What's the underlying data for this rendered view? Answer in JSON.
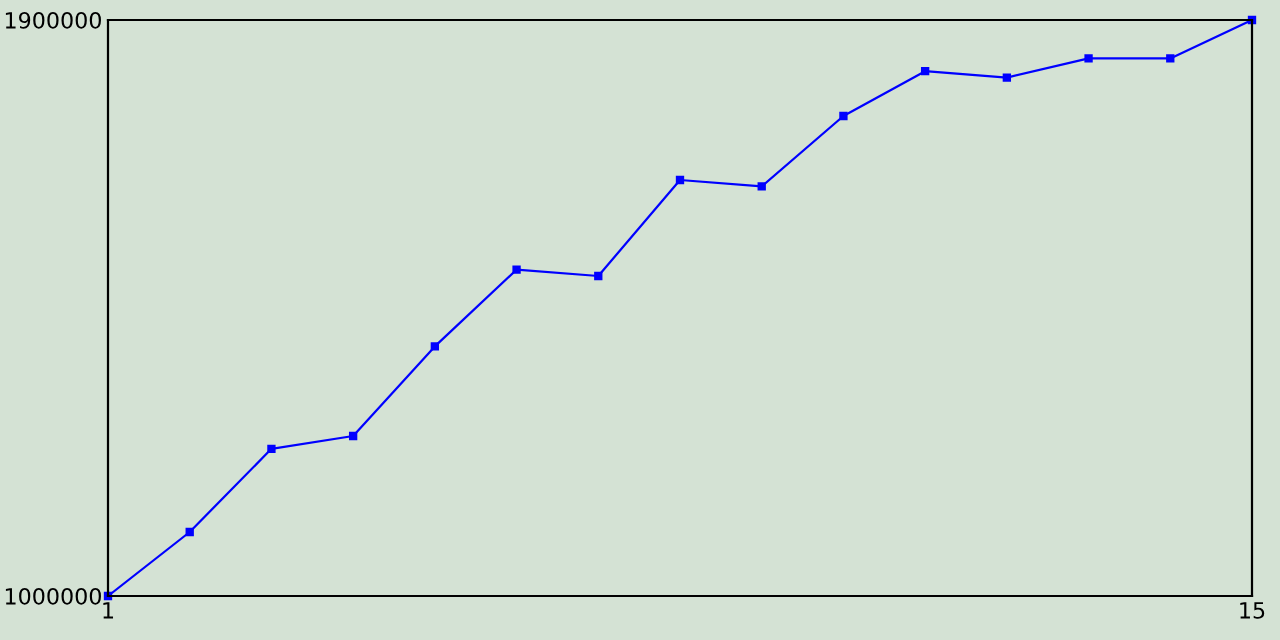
{
  "chart_data": {
    "type": "line",
    "x": [
      1,
      2,
      3,
      4,
      5,
      6,
      7,
      8,
      9,
      10,
      11,
      12,
      13,
      14,
      15
    ],
    "series": [
      {
        "color": "#0000ff",
        "values": [
          1000000,
          1100000,
          1230000,
          1250000,
          1390000,
          1510000,
          1500000,
          1650000,
          1640000,
          1750000,
          1820000,
          1810000,
          1840000,
          1840000,
          1900000
        ]
      }
    ],
    "xlim": [
      1,
      15
    ],
    "ylim": [
      1000000,
      1900000
    ],
    "xticks": [
      1,
      15
    ],
    "yticks": [
      1000000,
      1900000
    ],
    "grid": false,
    "legend": false,
    "marker": "square",
    "line_style": "solid"
  }
}
